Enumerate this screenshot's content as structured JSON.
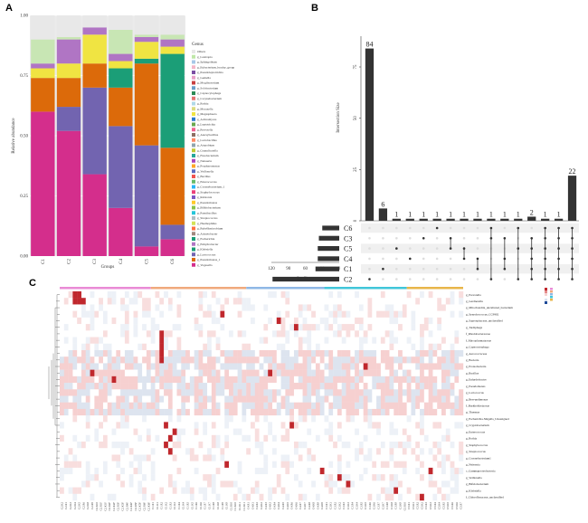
{
  "panels": {
    "a": "A",
    "b": "B",
    "c": "C"
  },
  "chart_data": [
    {
      "type": "bar",
      "panel": "A",
      "stacked": true,
      "xlabel": "Groups",
      "ylabel": "Relative abundance",
      "ylim": [
        0,
        1
      ],
      "yticks": [
        "0.00",
        "0.25",
        "0.50",
        "0.75",
        "1.00"
      ],
      "categories": [
        "C1",
        "C2",
        "C3",
        "C4",
        "C5",
        "C6"
      ],
      "legend_title": "Genus",
      "legend_position": "right",
      "legend": [
        "Others",
        "g_Lautropia",
        "g_Sphingobium",
        "g_Eubacterium_brachy_group",
        "g_Pseudoleptotrichia",
        "g_Gemella",
        "g_Mogibacterium",
        "g_Solobacterium",
        "g_Capnocytophaga",
        "g_Corynebacterium",
        "g_Rothia",
        "g_Moraxella",
        "g_Megasphaera",
        "g_Actinomyces",
        "g_Leptotrichia",
        "g_Prevotella",
        "g_Anoxybacillus",
        "g_Lactobacillus",
        "g_Atopobium",
        "g_Granulicatella",
        "g_Fusobacterium",
        "g_Neisseria",
        "g_Porphyromonas",
        "g_Veillonella",
        "g_Bacillus",
        "g_Enterococcus",
        "g_Corynebacterium_1",
        "g_Staphylococcus",
        "g_Ralstonia",
        "g_Pseudomonas",
        "g_Bifidobacterium",
        "g_Paenibacillus",
        "g_Streptococcus",
        "g_Haemophilus",
        "g_Rubellimicrobium",
        "g_Acinetobacter",
        "g_Escherichia",
        "g_Enhydrobacter",
        "g_Klebsiella",
        "g_Lactococcus",
        "g_Pseudomonas_1",
        "g_Vogesella"
      ],
      "series": [
        {
          "name": "g_Vogesella",
          "color": "#d42e8c",
          "values": [
            0.6,
            0.52,
            0.34,
            0.2,
            0.04,
            0.07
          ]
        },
        {
          "name": "g_Lactococcus",
          "color": "#7264b0",
          "values": [
            0.0,
            0.1,
            0.36,
            0.34,
            0.42,
            0.06
          ]
        },
        {
          "name": "g_Pseudomonas_1",
          "color": "#dc6a0a",
          "values": [
            0.14,
            0.12,
            0.1,
            0.16,
            0.34,
            0.32
          ]
        },
        {
          "name": "g_Klebsiella",
          "color": "#1b9e77",
          "values": [
            0.0,
            0.0,
            0.0,
            0.08,
            0.02,
            0.39
          ]
        },
        {
          "name": "g_Escherichia",
          "color": "#f0e442",
          "values": [
            0.04,
            0.06,
            0.12,
            0.03,
            0.07,
            0.03
          ]
        },
        {
          "name": "g_Enhydrobacter",
          "color": "#b075c4",
          "values": [
            0.02,
            0.1,
            0.03,
            0.03,
            0.02,
            0.03
          ]
        },
        {
          "name": "g_Acinetobacter",
          "color": "#c8e6b4",
          "values": [
            0.1,
            0.01,
            0.0,
            0.1,
            0.01,
            0.02
          ]
        },
        {
          "name": "Others",
          "color": "#e8e8e8",
          "values": [
            0.1,
            0.09,
            0.05,
            0.06,
            0.08,
            0.08
          ]
        }
      ]
    },
    {
      "type": "bar",
      "panel": "B",
      "chart_kind": "upset",
      "ylabel": "Intersection Size",
      "yticks": [
        "0",
        "25",
        "50",
        "75"
      ],
      "ylim": [
        0,
        90
      ],
      "values": [
        84,
        6,
        1,
        1,
        1,
        1,
        1,
        1,
        1,
        1,
        1,
        1,
        2,
        1,
        1,
        22
      ],
      "value_labels": [
        "84",
        "6",
        "1",
        "1",
        "1",
        "1",
        "1",
        "1",
        "1",
        "1",
        "1",
        "1",
        "2",
        "1",
        "1",
        "22"
      ],
      "sets": [
        "C6",
        "C3",
        "C5",
        "C4",
        "C1",
        "C2"
      ],
      "set_sizes": [
        30,
        36,
        38,
        38,
        42,
        118
      ],
      "set_size_label": "Set Size",
      "set_size_ticks": [
        "120",
        "90",
        "60",
        "30",
        "0"
      ],
      "set_size_xlim": [
        0,
        120
      ],
      "membership": [
        [
          5
        ],
        [
          4
        ],
        [
          2
        ],
        [
          3
        ],
        [
          1
        ],
        [
          0
        ],
        [
          1,
          2
        ],
        [
          2,
          3
        ],
        [
          3,
          4
        ],
        [
          0,
          1,
          5
        ],
        [
          1,
          3,
          4
        ],
        [
          0,
          2,
          5
        ],
        [
          1,
          2,
          3,
          4,
          5
        ],
        [
          0,
          1,
          2,
          3,
          4,
          5
        ],
        [
          0,
          1,
          2,
          3,
          4,
          5
        ],
        [
          0,
          1,
          2,
          3,
          4,
          5
        ]
      ]
    },
    {
      "type": "heatmap",
      "panel": "C",
      "group_colors": [
        "#e98bd6",
        "#f0a97c",
        "#8fb8e6",
        "#41c6d9",
        "#e8b64a"
      ],
      "scale_colors": [
        "#c0282d",
        "#e58b8b",
        "#f6d3d3",
        "#ffffff",
        "#dbe3ef",
        "#1e4a98"
      ],
      "rows": [
        "g_Prevotella",
        "g_Gardnerella",
        "g_Mitochondria_uncultured_bacterium",
        "g_Synechococcus_CC9902",
        "g_Saprospiraceae_unclassified",
        "g_Tardiphaga",
        "f_Rhodobacteraceae",
        "f_Mycoplasmataceae",
        "g_Capnocytophaga",
        "g_Aerococcaceae",
        "g_Bacteria",
        "g_Proteobacteria",
        "g_Bacillus",
        "g_Enhydrobacter",
        "g_Pseudomonas",
        "g_Lactococcus",
        "g_Brevundimonas",
        "f_Burkholderiaceae",
        "g_Thermus",
        "g_Escherichia-Shigella_Unassigned",
        "g_Cryptobacterium",
        "g_Enterococcus",
        "g_Rothia",
        "g_Staphylococcus",
        "g_Streptococcus",
        "g_Corynebacterium1",
        "g_Neisseria",
        "c_Gammaproteobacteria",
        "g_Veillonella",
        "g_Bifidobacterium",
        "g_Klebsiella",
        "f_Chloroflexaceae_unclassified"
      ],
      "columns": [
        "C2.K2",
        "C2.R1",
        "C2.K3",
        "C2.K4",
        "C2.K5",
        "C2.R6",
        "C2.K8",
        "C2.R9",
        "C2.K10",
        "C2.R1F",
        "C2.K1F",
        "C2.R2F",
        "C2.K2F",
        "C2.R3F",
        "C2.K3F",
        "C2.R4F",
        "C2.K4F",
        "C2.R5F",
        "C2.K5F",
        "C2.R6F",
        "C2.K6F",
        "C1.R1",
        "C1.K1",
        "C1.R2",
        "C1.K2",
        "C1.R3",
        "C1.K3",
        "C1.R4",
        "C1.K4",
        "C1.R5",
        "C1.K5",
        "C1.R6",
        "C1.K6",
        "C1.R7",
        "C1.K7",
        "C1.R8",
        "C1.K8",
        "C1.R9",
        "C1.K9",
        "C1.R10",
        "C1.K10",
        "C1.R11",
        "C1.K11",
        "C4.R1",
        "C4.K1",
        "C4.R2",
        "C4.K2",
        "C4.R3",
        "C4.K3",
        "C4.R4",
        "C4.K4",
        "C4.R5",
        "C4.K5",
        "C4.R6",
        "C4.K6",
        "C4.R7",
        "C4.K7",
        "C4.R8",
        "C4.K8",
        "C4.R9",
        "C4.K9",
        "C3.R1",
        "C3.K1",
        "C3.R2",
        "C3.K2",
        "C3.R3",
        "C3.K3",
        "C3.R4",
        "C3.K4",
        "C3.R5",
        "C3.K5",
        "C3.R6",
        "C3.K6",
        "C3.R7",
        "C3.K7",
        "C3.R8",
        "C3.K8",
        "C3.R9",
        "C3.K9",
        "C3.R10",
        "C5.R1",
        "C5.K1",
        "C5.R2",
        "C5.K2",
        "C5.R3",
        "C5.K3",
        "C5.R4",
        "C5.K4",
        "C5.R5",
        "C5.K5",
        "C5.R6",
        "C5.K6",
        "C5.R7"
      ]
    }
  ]
}
